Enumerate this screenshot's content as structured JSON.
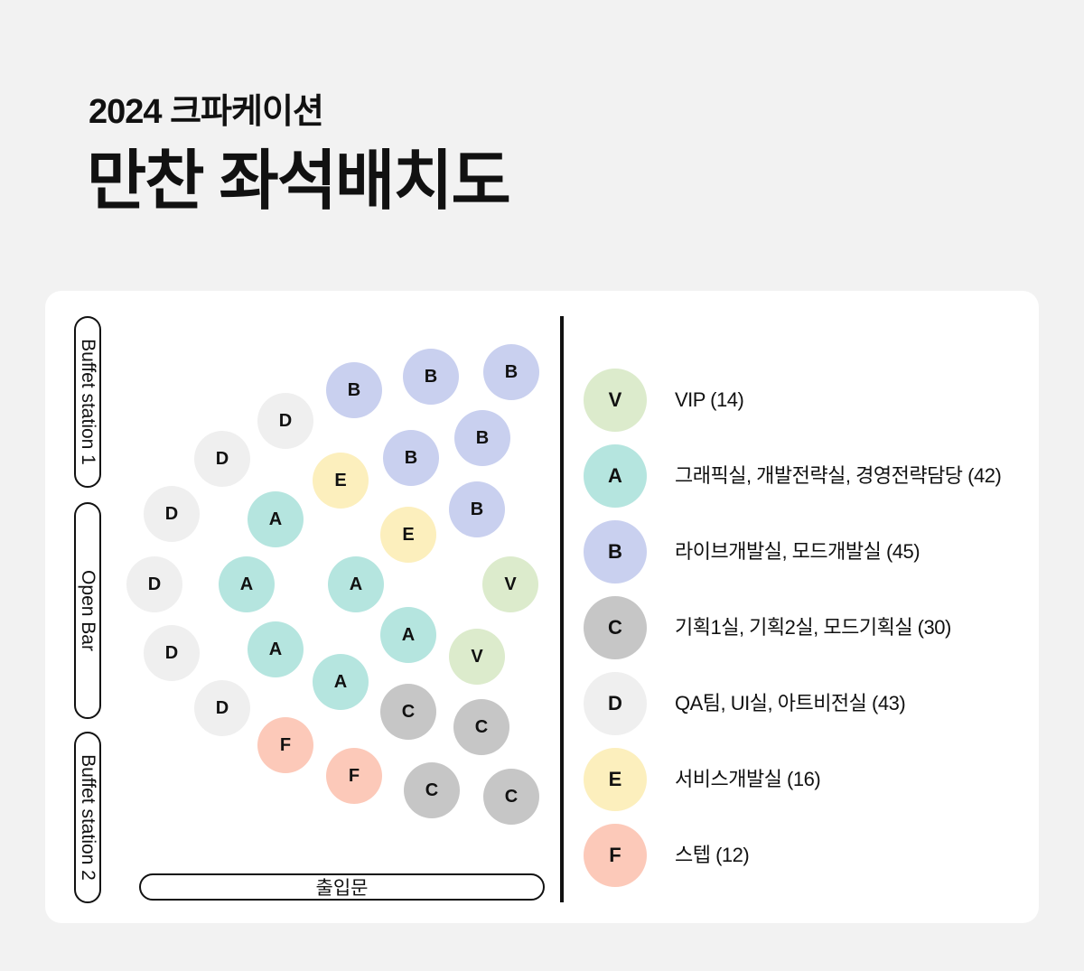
{
  "header": {
    "subtitle": "2024 크파케이션",
    "title": "만찬 좌석배치도"
  },
  "map": {
    "buffet_station_1": "Buffet station 1",
    "open_bar": "Open Bar",
    "buffet_station_2": "Buffet station 2",
    "entrance": "출입문"
  },
  "colors": {
    "V": "#dcebcc",
    "A": "#b5e5df",
    "B": "#c9d0ef",
    "C": "#c6c6c6",
    "D": "#efefef",
    "E": "#fcefbd",
    "F": "#fcc9b9"
  },
  "seats": [
    "B",
    "B",
    "B",
    "D",
    "B",
    "D",
    "E",
    "B",
    "B",
    "D",
    "A",
    "E",
    "B",
    "D",
    "A",
    "A",
    "V",
    "D",
    "A",
    "A",
    "V",
    "D",
    "A",
    "C",
    "C",
    "F",
    "F",
    "C",
    "C"
  ],
  "legend": [
    {
      "code": "V",
      "label": "VIP (14)"
    },
    {
      "code": "A",
      "label": "그래픽실, 개발전략실, 경영전략담당 (42)"
    },
    {
      "code": "B",
      "label": "라이브개발실, 모드개발실 (45)"
    },
    {
      "code": "C",
      "label": "기획1실, 기획2실, 모드기획실 (30)"
    },
    {
      "code": "D",
      "label": "QA팀, UI실, 아트비전실 (43)"
    },
    {
      "code": "E",
      "label": "서비스개발실 (16)"
    },
    {
      "code": "F",
      "label": "스텝 (12)"
    }
  ]
}
